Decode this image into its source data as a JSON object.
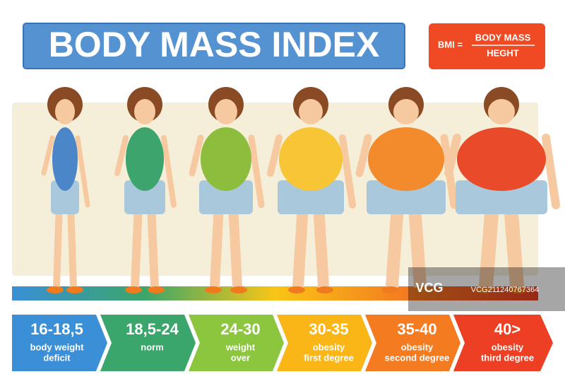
{
  "title": "BODY MASS INDEX",
  "formula": {
    "left": "BMI =",
    "numerator": "BODY MASS",
    "denominator": "HEGHT"
  },
  "categories": [
    {
      "range": "16-18,5",
      "lines": [
        "body weight",
        "deficit"
      ],
      "color": "#3a8fd6",
      "suit": "#4a86c8"
    },
    {
      "range": "18,5-24",
      "lines": [
        "norm"
      ],
      "color": "#3aa66b",
      "suit": "#3ea46e"
    },
    {
      "range": "24-30",
      "lines": [
        "weight",
        "over"
      ],
      "color": "#8cc63f",
      "suit": "#8dbd3c"
    },
    {
      "range": "30-35",
      "lines": [
        "obesity",
        "first degree"
      ],
      "color": "#f9b616",
      "suit": "#f7c535"
    },
    {
      "range": "35-40",
      "lines": [
        "obesity",
        "second degree"
      ],
      "color": "#f47b20",
      "suit": "#f38a2c"
    },
    {
      "range": "40>",
      "lines": [
        "obesity",
        "third degree"
      ],
      "color": "#ec3f24",
      "suit": "#e84a2a"
    }
  ],
  "watermark": {
    "logo": "VCG",
    "id": "VCG211240767364"
  }
}
